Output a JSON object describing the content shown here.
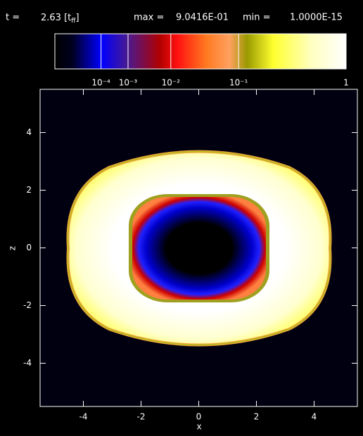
{
  "chart_data": {
    "type": "image",
    "header": {
      "t_label": "t =",
      "time": "2.63",
      "unit_open": "[t",
      "unit_sub": "ff",
      "unit_close": "]",
      "max_label": "max =",
      "max_value": "9.0416E-01",
      "min_label": "min =",
      "min_value": "1.0000E-15"
    },
    "colorbar": {
      "scale": "power",
      "exponent": 0.2,
      "lim": [
        0,
        1
      ],
      "ticks": [
        {
          "value": 0.0001,
          "label": "10⁻⁴"
        },
        {
          "value": 0.001,
          "label": "10⁻³"
        },
        {
          "value": 0.01,
          "label": "10⁻²"
        },
        {
          "value": 0.1,
          "label": "10⁻¹"
        },
        1
      ]
    },
    "x_label": "x",
    "y_label": "z",
    "xlim": [
      -5.5,
      5.5
    ],
    "ylim": [
      -5.5,
      5.5
    ],
    "xticks": [
      -4,
      -2,
      0,
      2,
      4
    ],
    "yticks": [
      -4,
      -2,
      0,
      2,
      4
    ]
  }
}
